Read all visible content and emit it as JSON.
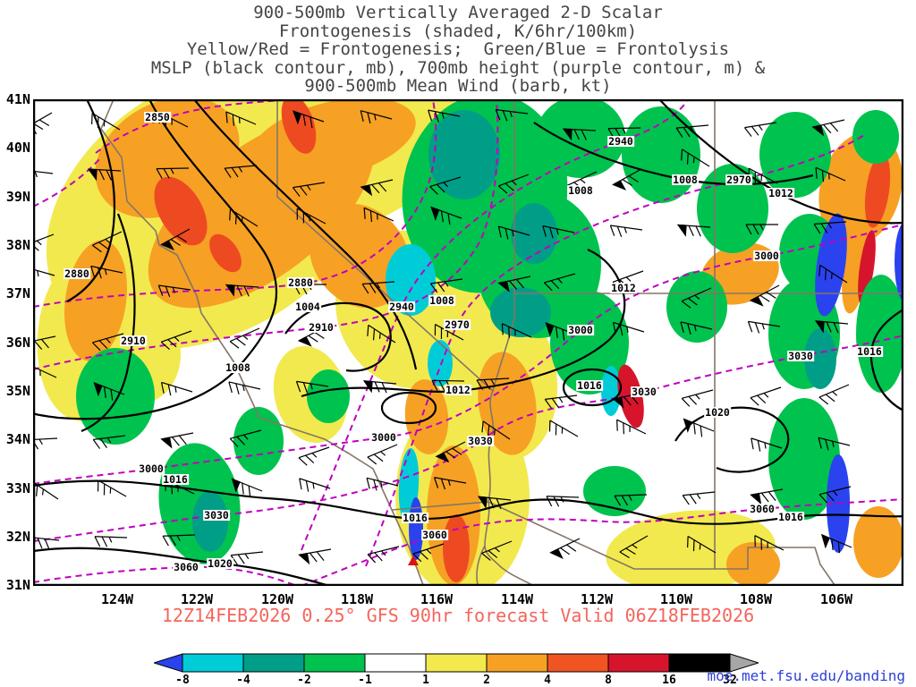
{
  "title_lines": [
    "900-500mb Vertically Averaged 2-D Scalar",
    "Frontogenesis (shaded, K/6hr/100km)",
    "Yellow/Red = Frontogenesis;  Green/Blue = Frontolysis",
    "MSLP (black contour, mb), 700mb height (purple contour, m) &",
    "900-500mb Mean Wind (barb, kt)"
  ],
  "axes": {
    "lat": [
      "41N",
      "40N",
      "39N",
      "38N",
      "37N",
      "36N",
      "35N",
      "34N",
      "33N",
      "32N",
      "31N"
    ],
    "lon": [
      "124W",
      "122W",
      "120W",
      "118W",
      "116W",
      "114W",
      "112W",
      "110W",
      "108W",
      "106W"
    ]
  },
  "labels": {
    "contour": [
      "2850",
      "2940",
      "1008",
      "1008",
      "2970",
      "1012",
      "3000",
      "2880",
      "2880",
      "1004",
      "2910",
      "2940",
      "1008",
      "2970",
      "1012",
      "2910",
      "3000",
      "1008",
      "1016",
      "3030",
      "1012",
      "3030",
      "1020",
      "3000",
      "1016",
      "3030",
      "3000",
      "1016",
      "3060",
      "1016",
      "3060",
      "1020",
      "3060",
      "3030",
      "1016"
    ]
  },
  "footer": {
    "caption": "12Z14FEB2026 0.25° GFS 90hr forecast Valid 06Z18FEB2026",
    "credit": "moe.met.fsu.edu/banding"
  },
  "colorbar": {
    "ticks": [
      "-8",
      "-4",
      "-2",
      "-1",
      "1",
      "2",
      "4",
      "8",
      "16",
      "32"
    ]
  },
  "colors": {
    "title": "#454545",
    "caption": "#f4655c",
    "credit_link": "#2d3fd6",
    "mslp_contour": "#000000",
    "height_contour": "#c000c0",
    "state_border": "#857567"
  },
  "chart_data": {
    "type": "heatmap",
    "title": "900-500mb Vertically Averaged 2-D Scalar Frontogenesis",
    "subtitle": "shaded, K/6hr/100km; Yellow/Red = Frontogenesis; Green/Blue = Frontolysis",
    "overlays": [
      "MSLP (black contour, mb)",
      "700mb height (purple contour, m)",
      "900-500mb Mean Wind (barb, kt)"
    ],
    "x_ticks": [
      "124W",
      "122W",
      "120W",
      "118W",
      "116W",
      "114W",
      "112W",
      "110W",
      "108W",
      "106W"
    ],
    "y_ticks": [
      "41N",
      "40N",
      "39N",
      "38N",
      "37N",
      "36N",
      "35N",
      "34N",
      "33N",
      "32N",
      "31N"
    ],
    "colorbar_levels": [
      -8,
      -4,
      -2,
      -1,
      1,
      2,
      4,
      8,
      16,
      32
    ],
    "colorbar_colors": [
      "#2a43ef",
      "#00ccd8",
      "#009e86",
      "#00c24e",
      "#ffffff",
      "#f2e94e",
      "#f6a124",
      "#f05423",
      "#d6152c",
      "#000000",
      "#a6a6a6"
    ],
    "mslp_contours_mb": [
      1004,
      1008,
      1012,
      1016,
      1020
    ],
    "height_contours_m": [
      2850,
      2880,
      2910,
      2940,
      2970,
      3000,
      3030,
      3060
    ],
    "model_run": "12Z14FEB2026",
    "resolution": "0.25°",
    "forecast": "GFS 90hr forecast",
    "valid": "06Z18FEB2026"
  }
}
